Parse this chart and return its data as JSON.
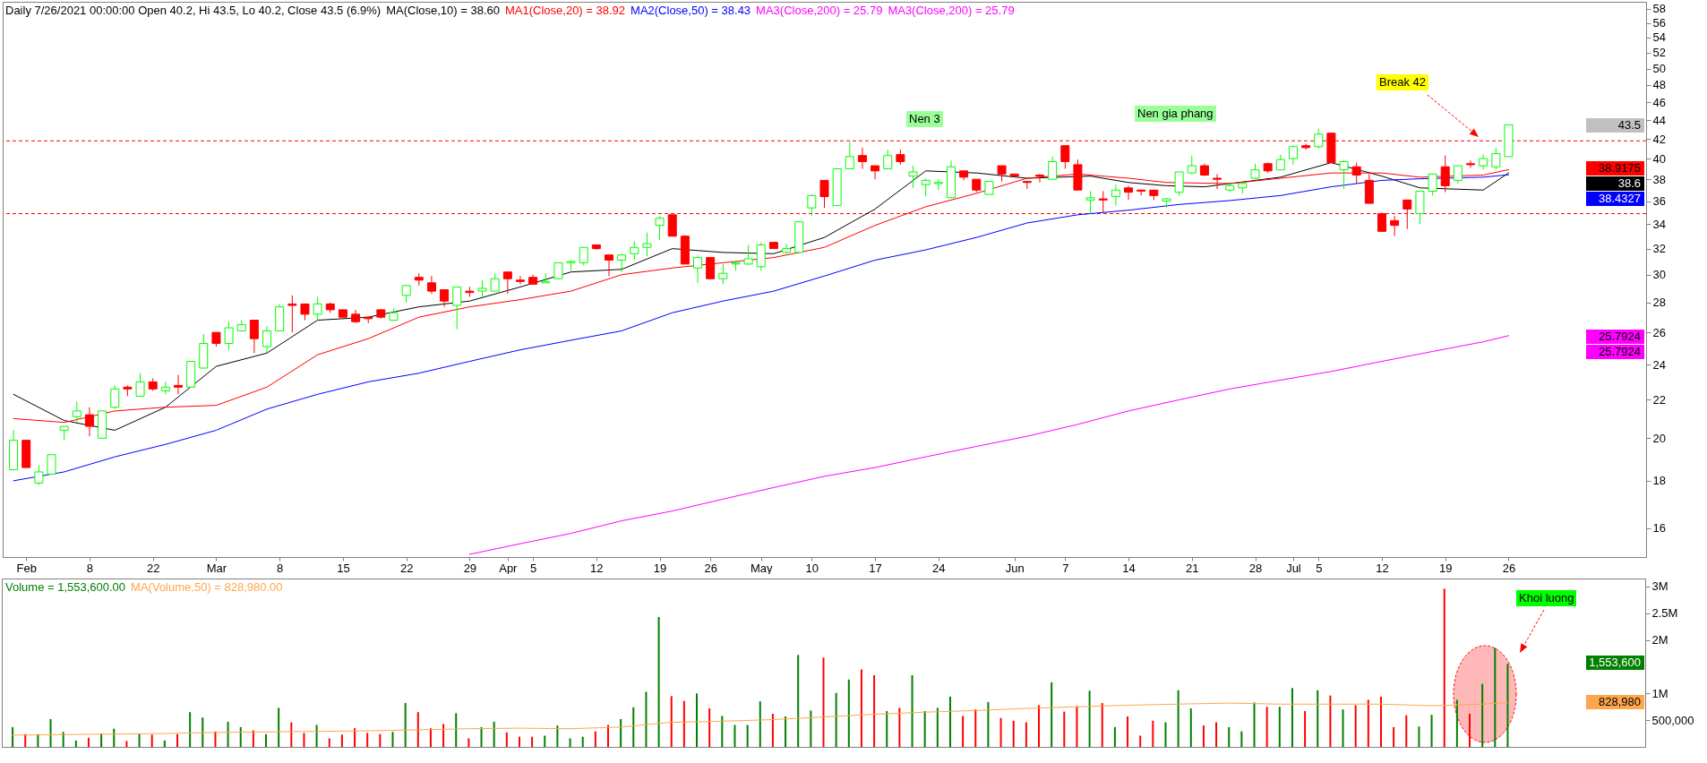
{
  "chart_data": [
    {
      "type": "candlestick",
      "title": "Daily 7/26/2021 00:00:00 Open 40.2, Hi 43.5, Lo 40.2, Close 43.5 (6.9%)",
      "categories": [
        null,
        "Feb",
        null,
        null,
        null,
        null,
        "8",
        null,
        null,
        null,
        null,
        "22",
        null,
        null,
        null,
        null,
        "Mar",
        null,
        null,
        null,
        null,
        "8",
        null,
        null,
        null,
        null,
        "15",
        null,
        null,
        null,
        null,
        "22",
        null,
        null,
        null,
        null,
        "29",
        null,
        null,
        "Apr",
        null,
        "5",
        null,
        null,
        null,
        null,
        "12",
        null,
        null,
        null,
        null,
        "19",
        null,
        null,
        null,
        "26",
        null,
        null,
        null,
        "May",
        null,
        null,
        null,
        "10",
        null,
        null,
        null,
        null,
        "17",
        null,
        null,
        null,
        null,
        "24",
        null,
        null,
        null,
        null,
        null,
        "Jun",
        null,
        null,
        null,
        "7",
        null,
        null,
        null,
        null,
        "14",
        null,
        null,
        null,
        null,
        "21",
        null,
        null,
        null,
        null,
        "28",
        null,
        null,
        "Jul",
        null,
        "5",
        null,
        null,
        null,
        null,
        "12",
        null,
        null,
        null,
        null,
        "19",
        null,
        null,
        null,
        null,
        "26",
        null,
        null,
        null,
        null,
        null,
        null,
        null,
        null,
        null,
        null
      ],
      "ohlc": [
        [
          18.5,
          20.4,
          18.5,
          19.9
        ],
        [
          19.9,
          19.9,
          18.6,
          18.6
        ],
        [
          17.9,
          18.7,
          17.8,
          18.4
        ],
        [
          18.3,
          19.2,
          18.3,
          19.2
        ],
        [
          20.4,
          20.6,
          19.9,
          20.6
        ],
        [
          21.1,
          21.9,
          20.8,
          21.4
        ],
        [
          21.2,
          21.6,
          20.1,
          20.6
        ],
        [
          20.0,
          21.4,
          20.0,
          21.4
        ],
        [
          21.6,
          22.8,
          21.5,
          22.6
        ],
        [
          22.7,
          22.8,
          22.2,
          22.6
        ],
        [
          22.2,
          23.5,
          22.2,
          23.0
        ],
        [
          23.0,
          23.2,
          22.5,
          22.6
        ],
        [
          22.5,
          23.0,
          22.3,
          22.7
        ],
        [
          22.8,
          23.4,
          22.3,
          22.7
        ],
        [
          22.7,
          24.2,
          22.7,
          24.2
        ],
        [
          23.8,
          25.9,
          23.8,
          25.3
        ],
        [
          26.0,
          26.0,
          25.1,
          25.3
        ],
        [
          25.3,
          26.7,
          24.9,
          26.3
        ],
        [
          26.1,
          26.8,
          26.1,
          26.5
        ],
        [
          26.8,
          26.8,
          24.7,
          25.6
        ],
        [
          25.1,
          26.4,
          24.7,
          26.1
        ],
        [
          26.1,
          27.9,
          26.1,
          27.7
        ],
        [
          27.9,
          28.5,
          26.0,
          27.8
        ],
        [
          27.9,
          27.9,
          26.8,
          27.2
        ],
        [
          27.2,
          28.4,
          26.8,
          27.9
        ],
        [
          27.9,
          28.0,
          27.3,
          27.5
        ],
        [
          27.5,
          27.5,
          27.0,
          27.0
        ],
        [
          27.2,
          27.5,
          26.6,
          26.7
        ],
        [
          27.0,
          27.0,
          26.6,
          26.9
        ],
        [
          27.5,
          27.5,
          26.9,
          27.0
        ],
        [
          26.8,
          27.6,
          26.8,
          27.3
        ],
        [
          28.5,
          29.2,
          28.0,
          29.2
        ],
        [
          29.8,
          30.1,
          29.2,
          29.6
        ],
        [
          29.4,
          29.9,
          28.6,
          28.8
        ],
        [
          28.9,
          28.9,
          27.7,
          28.1
        ],
        [
          27.8,
          29.1,
          26.2,
          29.1
        ],
        [
          28.8,
          29.1,
          28.4,
          28.7
        ],
        [
          28.8,
          29.6,
          28.4,
          29.0
        ],
        [
          28.8,
          30.1,
          28.8,
          29.7
        ],
        [
          30.2,
          30.2,
          28.6,
          29.7
        ],
        [
          29.6,
          29.9,
          29.3,
          29.5
        ],
        [
          29.8,
          30.0,
          29.3,
          29.3
        ],
        [
          29.4,
          30.1,
          29.4,
          29.5
        ],
        [
          29.7,
          30.9,
          29.7,
          30.9
        ],
        [
          30.9,
          31.1,
          30.3,
          31.0
        ],
        [
          30.9,
          32.1,
          30.7,
          32.1
        ],
        [
          32.3,
          32.3,
          31.9,
          32.0
        ],
        [
          31.5,
          31.5,
          29.9,
          31.1
        ],
        [
          31.1,
          31.6,
          30.2,
          31.5
        ],
        [
          31.6,
          32.6,
          31.1,
          32.1
        ],
        [
          32.1,
          33.3,
          31.4,
          32.4
        ],
        [
          33.9,
          34.7,
          32.7,
          34.5
        ],
        [
          34.8,
          34.8,
          33.0,
          33.0
        ],
        [
          33.0,
          33.1,
          30.8,
          30.8
        ],
        [
          30.5,
          31.5,
          29.4,
          31.3
        ],
        [
          31.3,
          31.3,
          29.7,
          29.7
        ],
        [
          29.7,
          30.8,
          29.3,
          30.1
        ],
        [
          30.8,
          31.0,
          30.3,
          30.9
        ],
        [
          30.8,
          32.3,
          30.7,
          31.2
        ],
        [
          30.6,
          32.5,
          30.3,
          32.3
        ],
        [
          32.5,
          32.5,
          32.0,
          32.0
        ],
        [
          31.7,
          32.4,
          31.6,
          32.0
        ],
        [
          31.7,
          34.2,
          31.7,
          34.2
        ],
        [
          35.4,
          36.6,
          34.7,
          36.5
        ],
        [
          37.9,
          37.9,
          35.4,
          36.4
        ],
        [
          35.6,
          39.0,
          35.6,
          39.0
        ],
        [
          39.0,
          41.7,
          39.0,
          40.2
        ],
        [
          40.3,
          41.1,
          39.0,
          39.7
        ],
        [
          39.3,
          39.3,
          38.0,
          38.8
        ],
        [
          39.0,
          40.9,
          39.0,
          40.3
        ],
        [
          40.4,
          40.9,
          39.4,
          39.7
        ],
        [
          38.3,
          39.3,
          37.2,
          38.7
        ],
        [
          37.5,
          38.1,
          36.4,
          37.9
        ],
        [
          37.6,
          38.0,
          37.0,
          37.7
        ],
        [
          36.3,
          39.8,
          36.3,
          39.2
        ],
        [
          38.8,
          38.8,
          37.9,
          38.2
        ],
        [
          38.0,
          38.0,
          36.8,
          37.0
        ],
        [
          36.6,
          37.8,
          36.6,
          37.8
        ],
        [
          39.3,
          39.3,
          37.8,
          38.5
        ],
        [
          38.5,
          38.5,
          38.2,
          38.3
        ],
        [
          37.8,
          37.8,
          37.1,
          37.7
        ],
        [
          38.4,
          38.5,
          37.7,
          38.3
        ],
        [
          38.0,
          40.2,
          38.0,
          39.7
        ],
        [
          41.3,
          41.3,
          39.0,
          39.7
        ],
        [
          39.4,
          39.9,
          37.0,
          37.0
        ],
        [
          36.1,
          36.9,
          34.9,
          36.3
        ],
        [
          36.2,
          36.9,
          35.0,
          36.1
        ],
        [
          36.4,
          37.5,
          35.6,
          37.0
        ],
        [
          37.2,
          37.4,
          36.1,
          36.8
        ],
        [
          37.0,
          37.0,
          36.5,
          36.9
        ],
        [
          37.0,
          37.0,
          36.1,
          36.5
        ],
        [
          36.0,
          36.3,
          35.4,
          36.2
        ],
        [
          36.8,
          38.7,
          36.5,
          38.7
        ],
        [
          38.6,
          40.3,
          38.5,
          39.3
        ],
        [
          39.3,
          39.5,
          38.3,
          38.4
        ],
        [
          38.1,
          38.5,
          37.1,
          38.0
        ],
        [
          37.0,
          37.7,
          36.8,
          37.4
        ],
        [
          37.2,
          37.7,
          36.7,
          37.6
        ],
        [
          38.1,
          39.5,
          38.0,
          38.9
        ],
        [
          39.5,
          39.6,
          38.6,
          38.8
        ],
        [
          38.9,
          40.4,
          38.9,
          39.9
        ],
        [
          40.0,
          41.3,
          39.4,
          41.2
        ],
        [
          41.3,
          41.5,
          40.9,
          41.1
        ],
        [
          41.2,
          43.1,
          41.0,
          42.5
        ],
        [
          42.6,
          42.6,
          39.6,
          39.6
        ],
        [
          38.9,
          39.9,
          37.1,
          39.7
        ],
        [
          39.2,
          39.6,
          37.6,
          38.4
        ],
        [
          37.9,
          38.5,
          35.8,
          35.8
        ],
        [
          34.9,
          35.0,
          33.4,
          33.4
        ],
        [
          34.3,
          34.7,
          33.0,
          33.9
        ],
        [
          36.1,
          36.1,
          33.6,
          35.3
        ],
        [
          34.9,
          36.9,
          34.0,
          36.9
        ],
        [
          36.9,
          38.5,
          36.5,
          38.5
        ],
        [
          39.2,
          40.3,
          36.8,
          37.4
        ],
        [
          37.9,
          39.3,
          37.6,
          39.3
        ],
        [
          39.5,
          39.8,
          39.1,
          39.4
        ],
        [
          39.3,
          40.4,
          38.9,
          40.0
        ],
        [
          39.2,
          41.1,
          38.9,
          40.5
        ],
        [
          40.2,
          43.5,
          40.2,
          43.5
        ],
        null,
        null,
        null,
        null,
        null,
        null,
        null,
        null,
        null,
        null
      ],
      "colors": [
        "#00ff00",
        "#ff0000",
        "#00ff00",
        "#00ff00",
        "#00ff00",
        "#00ff00",
        "#ff0000",
        "#00ff00",
        "#00ff00",
        "#ff0000",
        "#00ff00",
        "#ff0000",
        "#00ff00",
        "#ff0000",
        "#00ff00",
        "#00ff00",
        "#ff0000",
        "#00ff00",
        "#00ff00",
        "#ff0000",
        "#00ff00",
        "#00ff00",
        "#ff0000",
        "#ff0000",
        "#00ff00",
        "#ff0000",
        "#ff0000",
        "#ff0000",
        "#ff0000",
        "#ff0000",
        "#00ff00",
        "#00ff00",
        "#ff0000",
        "#ff0000",
        "#ff0000",
        "#00ff00",
        "#ff0000",
        "#00ff00",
        "#00ff00",
        "#ff0000",
        "#ff0000",
        "#ff0000",
        "#00ff00",
        "#00ff00",
        "#00ff00",
        "#00ff00",
        "#ff0000",
        "#ff0000",
        "#00ff00",
        "#00ff00",
        "#00ff00",
        "#00ff00",
        "#ff0000",
        "#ff0000",
        "#00ff00",
        "#ff0000",
        "#00ff00",
        "#00ff00",
        "#00ff00",
        "#00ff00",
        "#ff0000",
        "#00ff00",
        "#00ff00",
        "#00ff00",
        "#ff0000",
        "#00ff00",
        "#00ff00",
        "#ff0000",
        "#ff0000",
        "#00ff00",
        "#ff0000",
        "#00ff00",
        "#00ff00",
        "#00ff00",
        "#00ff00",
        "#ff0000",
        "#ff0000",
        "#00ff00",
        "#ff0000",
        "#ff0000",
        "#ff0000",
        "#ff0000",
        "#00ff00",
        "#ff0000",
        "#ff0000",
        "#00ff00",
        "#ff0000",
        "#00ff00",
        "#ff0000",
        "#ff0000",
        "#ff0000",
        "#00ff00",
        "#00ff00",
        "#00ff00",
        "#ff0000",
        "#ff0000",
        "#00ff00",
        "#00ff00",
        "#00ff00",
        "#ff0000",
        "#00ff00",
        "#00ff00",
        "#ff0000",
        "#00ff00",
        "#ff0000",
        "#00ff00",
        "#ff0000",
        "#ff0000",
        "#ff0000",
        "#ff0000",
        "#ff0000",
        "#00ff00",
        "#00ff00",
        "#ff0000",
        "#00ff00",
        "#ff0000",
        "#00ff00",
        "#00ff00",
        "#00ff00",
        null,
        null,
        null,
        null,
        null,
        null,
        null,
        null,
        null,
        null
      ],
      "series": [
        {
          "name": "MA(Close,10) = 38.60",
          "type": "line",
          "color": "#000000",
          "values": [
            22.3,
            null,
            null,
            null,
            20.9,
            null,
            null,
            null,
            20.4,
            null,
            null,
            null,
            21.6,
            null,
            null,
            null,
            23.9,
            null,
            null,
            null,
            24.7,
            null,
            null,
            null,
            26.8,
            null,
            null,
            null,
            27.0,
            null,
            null,
            null,
            27.7,
            null,
            null,
            null,
            28.1,
            null,
            null,
            null,
            29.1,
            null,
            null,
            null,
            30.2,
            null,
            null,
            null,
            30.4,
            null,
            null,
            null,
            32.0,
            null,
            null,
            null,
            31.7,
            null,
            null,
            null,
            31.6,
            null,
            null,
            null,
            32.9,
            null,
            null,
            null,
            35.3,
            null,
            null,
            null,
            38.8,
            null,
            null,
            null,
            38.6,
            null,
            null,
            null,
            38.1,
            null,
            null,
            null,
            null,
            38.3,
            null,
            null,
            37.7,
            null,
            null,
            37.4,
            null,
            null,
            37.3,
            null,
            null,
            null,
            null,
            null,
            38.2,
            null,
            null,
            null,
            39.6,
            null,
            null,
            null,
            38.3,
            null,
            null,
            37.2,
            null,
            null,
            null,
            null,
            37.0,
            null,
            38.6,
            null,
            null,
            null,
            null,
            null,
            null,
            null,
            null,
            null,
            null
          ]
        },
        {
          "name": "MA1(Close,20) = 38.92",
          "type": "line",
          "color": "#ff0000",
          "values": [
            21.0,
            null,
            null,
            null,
            20.8,
            null,
            null,
            null,
            21.4,
            null,
            null,
            null,
            21.6,
            null,
            null,
            null,
            21.7,
            null,
            null,
            null,
            22.7,
            null,
            null,
            null,
            24.6,
            null,
            null,
            null,
            25.6,
            null,
            null,
            null,
            27.0,
            null,
            null,
            null,
            27.7,
            null,
            null,
            null,
            28.2,
            null,
            null,
            null,
            28.8,
            null,
            null,
            null,
            30.0,
            null,
            null,
            null,
            30.5,
            null,
            null,
            null,
            30.9,
            null,
            null,
            null,
            31.3,
            null,
            null,
            null,
            32.1,
            null,
            null,
            null,
            33.9,
            null,
            null,
            null,
            35.5,
            null,
            null,
            null,
            36.7,
            null,
            null,
            null,
            38.1,
            null,
            null,
            null,
            38.5,
            null,
            null,
            null,
            38.1,
            null,
            null,
            37.7,
            null,
            null,
            null,
            null,
            37.6,
            null,
            null,
            null,
            38.1,
            null,
            null,
            null,
            38.6,
            null,
            null,
            null,
            38.6,
            null,
            null,
            38.2,
            null,
            null,
            null,
            null,
            38.4,
            null,
            38.92,
            null,
            null,
            null,
            null,
            null,
            null,
            null,
            null,
            null,
            null
          ]
        },
        {
          "name": "MA2(Close,50) = 38.43",
          "type": "line",
          "color": "#0000ff",
          "values": [
            18.0,
            null,
            null,
            null,
            18.4,
            null,
            null,
            null,
            19.1,
            null,
            null,
            null,
            19.7,
            null,
            null,
            null,
            20.4,
            null,
            null,
            null,
            21.5,
            null,
            null,
            null,
            22.3,
            null,
            null,
            null,
            23.0,
            null,
            null,
            null,
            23.5,
            null,
            null,
            null,
            24.2,
            null,
            null,
            null,
            24.9,
            null,
            null,
            null,
            25.5,
            null,
            null,
            null,
            26.1,
            null,
            null,
            null,
            27.3,
            null,
            null,
            null,
            28.1,
            null,
            null,
            null,
            28.8,
            null,
            null,
            null,
            29.9,
            null,
            null,
            null,
            31.1,
            null,
            null,
            null,
            31.9,
            null,
            null,
            null,
            32.9,
            null,
            null,
            null,
            34.1,
            null,
            null,
            null,
            34.8,
            null,
            null,
            null,
            35.2,
            null,
            null,
            null,
            35.7,
            null,
            null,
            null,
            36.05,
            null,
            null,
            null,
            36.5,
            null,
            null,
            null,
            37.3,
            null,
            null,
            null,
            37.9,
            null,
            null,
            38.05,
            null,
            null,
            null,
            null,
            38.2,
            null,
            38.43,
            null,
            null,
            null,
            null,
            null,
            null,
            null,
            null,
            null,
            null
          ]
        },
        {
          "name": "MA3(Close,200) = 25.79",
          "type": "line",
          "color": "#ff00ff",
          "values": [
            null,
            null,
            null,
            null,
            null,
            null,
            null,
            null,
            null,
            null,
            null,
            null,
            null,
            null,
            null,
            null,
            null,
            null,
            null,
            null,
            null,
            null,
            null,
            null,
            null,
            null,
            null,
            null,
            null,
            null,
            null,
            null,
            null,
            null,
            null,
            null,
            15.0,
            null,
            null,
            null,
            15.4,
            null,
            null,
            null,
            15.8,
            null,
            null,
            null,
            16.3,
            null,
            null,
            null,
            16.7,
            null,
            null,
            null,
            17.2,
            null,
            null,
            null,
            17.7,
            null,
            null,
            null,
            18.2,
            null,
            null,
            null,
            18.6,
            null,
            null,
            null,
            19.1,
            null,
            null,
            null,
            19.6,
            null,
            null,
            null,
            20.1,
            null,
            null,
            null,
            20.7,
            null,
            null,
            null,
            21.4,
            null,
            null,
            null,
            22.0,
            null,
            null,
            null,
            22.6,
            null,
            null,
            null,
            23.1,
            null,
            null,
            null,
            23.6,
            null,
            null,
            null,
            24.2,
            null,
            null,
            null,
            24.8,
            null,
            null,
            null,
            25.4,
            null,
            25.79,
            null,
            null,
            null,
            null,
            null,
            null,
            null,
            null,
            null,
            null
          ]
        }
      ],
      "ylim": [
        14.9,
        59
      ],
      "yticks": [
        16,
        18,
        20,
        22,
        24,
        26,
        28,
        30,
        32,
        34,
        36,
        38,
        40,
        42,
        44,
        46,
        48,
        50,
        52,
        54,
        56,
        58
      ],
      "log": true,
      "legend": "top left",
      "ref_lines": [
        {
          "axis": "y",
          "value": 41.8,
          "color": "#ff0000",
          "line_style": "dashed"
        },
        {
          "axis": "y",
          "value": 34.9,
          "color": "#ff0000",
          "line_style": "dashed"
        }
      ],
      "annotations": [
        "MA3(Close,200) = 25.79",
        "Nen 3",
        "Nen gia phang",
        "Break 42",
        "43.5",
        "38.9175",
        "38.6",
        "38.4327",
        "25.7924",
        "25.7924"
      ]
    },
    {
      "type": "bar",
      "categories": [
        null,
        null,
        null,
        null,
        null,
        null,
        null,
        null,
        null,
        null,
        null,
        null,
        null,
        null,
        null,
        null,
        null,
        null,
        null,
        null,
        null,
        null,
        null,
        null,
        null,
        null,
        null,
        null,
        null,
        null,
        null,
        null,
        null,
        null,
        null,
        null,
        null,
        null,
        null,
        null,
        null,
        null,
        null,
        null,
        null,
        null,
        null,
        null,
        null,
        null,
        null,
        null,
        null,
        null,
        null,
        null,
        null,
        null,
        null,
        null,
        null,
        null,
        null,
        null,
        null,
        null,
        null,
        null,
        null,
        null,
        null,
        null,
        null,
        null,
        null,
        null,
        null,
        null,
        null,
        null,
        null,
        null,
        null,
        null,
        null,
        null,
        null,
        null,
        null,
        null,
        null,
        null,
        null,
        null,
        null,
        null,
        null,
        null,
        null,
        null,
        null,
        null,
        null,
        null,
        null,
        null,
        null,
        null,
        null,
        null,
        null,
        null,
        null,
        null,
        null,
        null,
        null,
        null,
        null,
        null,
        null,
        null,
        null,
        null,
        null,
        null,
        null,
        null,
        null
      ],
      "series": [
        {
          "name": "Volume = 1,553,600.00",
          "type": "bar",
          "color": "#008000",
          "values": [
            370000,
            240000,
            240000,
            520000,
            280000,
            120000,
            170000,
            250000,
            340000,
            110000,
            250000,
            230000,
            120000,
            240000,
            650000,
            550000,
            290000,
            470000,
            370000,
            310000,
            240000,
            730000,
            460000,
            260000,
            410000,
            160000,
            230000,
            350000,
            260000,
            240000,
            280000,
            820000,
            650000,
            350000,
            430000,
            630000,
            160000,
            370000,
            470000,
            270000,
            190000,
            190000,
            210000,
            400000,
            160000,
            190000,
            290000,
            410000,
            520000,
            740000,
            1030000,
            2430000,
            950000,
            860000,
            1000000,
            720000,
            580000,
            410000,
            410000,
            850000,
            620000,
            570000,
            1720000,
            680000,
            1670000,
            1010000,
            1260000,
            1450000,
            1340000,
            670000,
            730000,
            1340000,
            670000,
            730000,
            940000,
            580000,
            700000,
            840000,
            540000,
            490000,
            460000,
            780000,
            1210000,
            660000,
            760000,
            1050000,
            820000,
            370000,
            570000,
            210000,
            490000,
            460000,
            1060000,
            720000,
            400000,
            460000,
            370000,
            290000,
            830000,
            750000,
            750000,
            1100000,
            670000,
            1060000,
            960000,
            700000,
            780000,
            880000,
            940000,
            370000,
            590000,
            380000,
            600000,
            2960000,
            880000,
            620000,
            1180000,
            1850000,
            1553600,
            null,
            null,
            null,
            null,
            null,
            null,
            null,
            null,
            null,
            null
          ],
          "colors": [
            "#008000",
            "#ff0000",
            "#008000",
            "#008000",
            "#008000",
            "#008000",
            "#ff0000",
            "#008000",
            "#008000",
            "#ff0000",
            "#008000",
            "#ff0000",
            "#008000",
            "#ff0000",
            "#008000",
            "#008000",
            "#ff0000",
            "#008000",
            "#008000",
            "#ff0000",
            "#008000",
            "#008000",
            "#ff0000",
            "#ff0000",
            "#008000",
            "#ff0000",
            "#ff0000",
            "#ff0000",
            "#ff0000",
            "#ff0000",
            "#008000",
            "#008000",
            "#ff0000",
            "#ff0000",
            "#ff0000",
            "#008000",
            "#ff0000",
            "#008000",
            "#008000",
            "#ff0000",
            "#ff0000",
            "#ff0000",
            "#008000",
            "#008000",
            "#008000",
            "#008000",
            "#ff0000",
            "#ff0000",
            "#008000",
            "#008000",
            "#008000",
            "#008000",
            "#ff0000",
            "#ff0000",
            "#008000",
            "#ff0000",
            "#008000",
            "#008000",
            "#008000",
            "#008000",
            "#ff0000",
            "#008000",
            "#008000",
            "#008000",
            "#ff0000",
            "#008000",
            "#008000",
            "#ff0000",
            "#ff0000",
            "#008000",
            "#ff0000",
            "#008000",
            "#008000",
            "#008000",
            "#008000",
            "#ff0000",
            "#ff0000",
            "#008000",
            "#ff0000",
            "#ff0000",
            "#ff0000",
            "#ff0000",
            "#008000",
            "#ff0000",
            "#ff0000",
            "#008000",
            "#ff0000",
            "#008000",
            "#ff0000",
            "#ff0000",
            "#ff0000",
            "#008000",
            "#008000",
            "#008000",
            "#ff0000",
            "#ff0000",
            "#008000",
            "#008000",
            "#008000",
            "#ff0000",
            "#008000",
            "#008000",
            "#ff0000",
            "#008000",
            "#ff0000",
            "#008000",
            "#ff0000",
            "#ff0000",
            "#ff0000",
            "#ff0000",
            "#ff0000",
            "#008000",
            "#008000",
            "#ff0000",
            "#008000",
            "#ff0000",
            "#008000",
            "#008000",
            "#008000",
            null,
            null,
            null,
            null,
            null,
            null,
            null,
            null,
            null,
            null
          ]
        },
        {
          "name": "MA(Volume,50) = 828,980.00",
          "type": "line",
          "color": "#ffa64d",
          "values": [
            220000,
            null,
            null,
            null,
            230000,
            null,
            null,
            null,
            240000,
            null,
            null,
            null,
            250000,
            null,
            null,
            null,
            270000,
            null,
            null,
            null,
            280000,
            null,
            null,
            null,
            290000,
            null,
            null,
            null,
            300000,
            null,
            null,
            null,
            320000,
            null,
            null,
            null,
            340000,
            null,
            null,
            null,
            350000,
            null,
            null,
            null,
            340000,
            null,
            null,
            null,
            370000,
            null,
            null,
            null,
            460000,
            null,
            null,
            null,
            480000,
            null,
            null,
            null,
            510000,
            null,
            null,
            null,
            560000,
            null,
            null,
            null,
            610000,
            null,
            null,
            null,
            650000,
            null,
            null,
            null,
            680000,
            null,
            null,
            null,
            720000,
            null,
            null,
            null,
            750000,
            null,
            null,
            null,
            780000,
            null,
            null,
            null,
            800000,
            null,
            null,
            null,
            820000,
            null,
            null,
            null,
            800000,
            null,
            null,
            null,
            800000,
            null,
            null,
            null,
            800000,
            null,
            null,
            null,
            770000,
            null,
            null,
            null,
            800000,
            null,
            828980,
            null,
            null,
            null,
            null,
            null,
            null,
            null,
            null,
            null,
            null
          ]
        }
      ],
      "ylim": [
        0,
        3150000
      ],
      "yticks": [
        {
          "value": 500000,
          "label": "500,000"
        },
        {
          "value": 1000000,
          "label": "1M"
        },
        {
          "value": 2000000,
          "label": "2M"
        },
        {
          "value": 2500000,
          "label": "2.5M"
        },
        {
          "value": 3000000,
          "label": "3M"
        }
      ],
      "tick_labels": "y",
      "legend": "top left",
      "annotations": [
        "Khoi luong",
        "1,553,600",
        "828,980"
      ]
    }
  ]
}
